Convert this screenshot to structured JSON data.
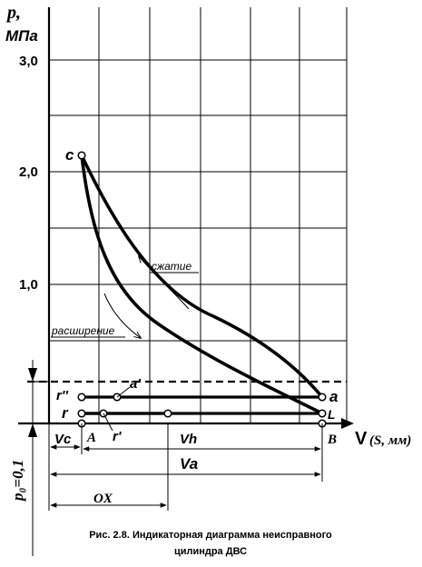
{
  "axes": {
    "y_label_line1": "p,",
    "y_label_line2": "МПа",
    "y_ticks": [
      "3,0",
      "2,0",
      "1,0"
    ],
    "x_label_V": "V",
    "x_label_rest": "(S, мм)",
    "p0_label": "p₀=0,1"
  },
  "points": {
    "c": "c",
    "a": "a",
    "a_prime": "a'",
    "r": "r",
    "r_double_prime": "r''",
    "r_prime": "r'",
    "l": "L",
    "A": "A",
    "B": "B"
  },
  "curve_labels": {
    "compression": "сжатие",
    "expansion": "расширение"
  },
  "dimensions": {
    "vc": "Vc",
    "vh": "Vh",
    "va": "Va",
    "ox": "OX"
  },
  "caption": {
    "line1": "Рис. 2.8. Индикаторная диаграмма неисправного",
    "line2": "цилиндра ДВС"
  }
}
